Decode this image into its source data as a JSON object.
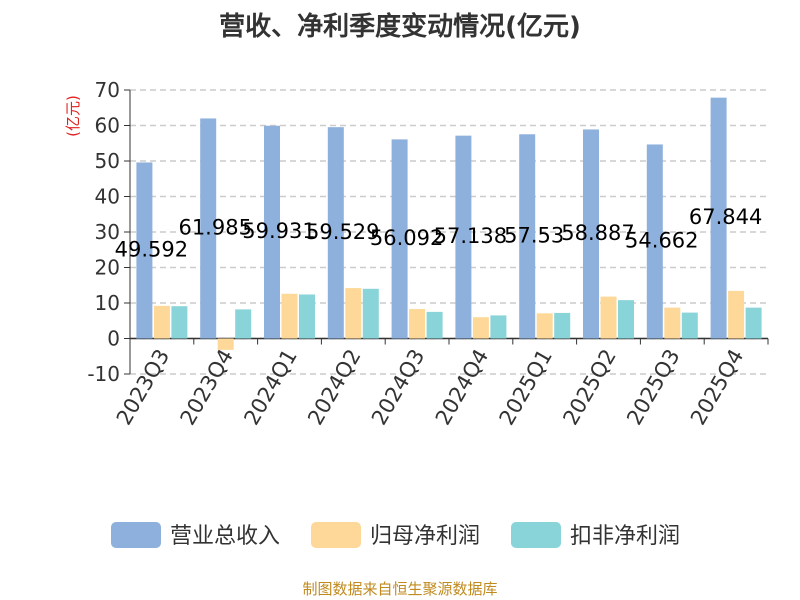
{
  "chart_data": {
    "type": "bar",
    "title": "营收、净利季度变动情况(亿元)",
    "ylabel": "(亿元)",
    "xlabel": "",
    "ylim": [
      -10,
      70
    ],
    "yticks": [
      70,
      60,
      50,
      40,
      30,
      20,
      10,
      0,
      -10
    ],
    "grid": true,
    "legend_position": "bottom",
    "categories": [
      "2023Q3",
      "2023Q4",
      "2024Q1",
      "2024Q2",
      "2024Q3",
      "2024Q4",
      "2025Q1",
      "2025Q2",
      "2025Q3",
      "2025Q4"
    ],
    "series": [
      {
        "name": "营业总收入",
        "color": "#8EB0DC",
        "values": [
          49.592,
          61.985,
          59.931,
          59.529,
          56.092,
          57.138,
          57.53,
          58.887,
          54.662,
          67.844
        ],
        "labels": [
          "49.592",
          "61.985",
          "59.931",
          "59.529",
          "56.092",
          "57.138",
          "57.53",
          "58.887",
          "54.662",
          "67.844"
        ]
      },
      {
        "name": "归母净利润",
        "color": "#FDD899",
        "values": [
          9.2,
          -3.2,
          12.6,
          14.2,
          8.3,
          6.0,
          7.1,
          11.8,
          8.7,
          13.4
        ]
      },
      {
        "name": "扣非净利润",
        "color": "#88D4D8",
        "values": [
          9.1,
          8.2,
          12.4,
          14.0,
          7.5,
          6.5,
          7.2,
          10.8,
          7.3,
          8.7
        ]
      }
    ],
    "source": "制图数据来自恒生聚源数据库"
  }
}
